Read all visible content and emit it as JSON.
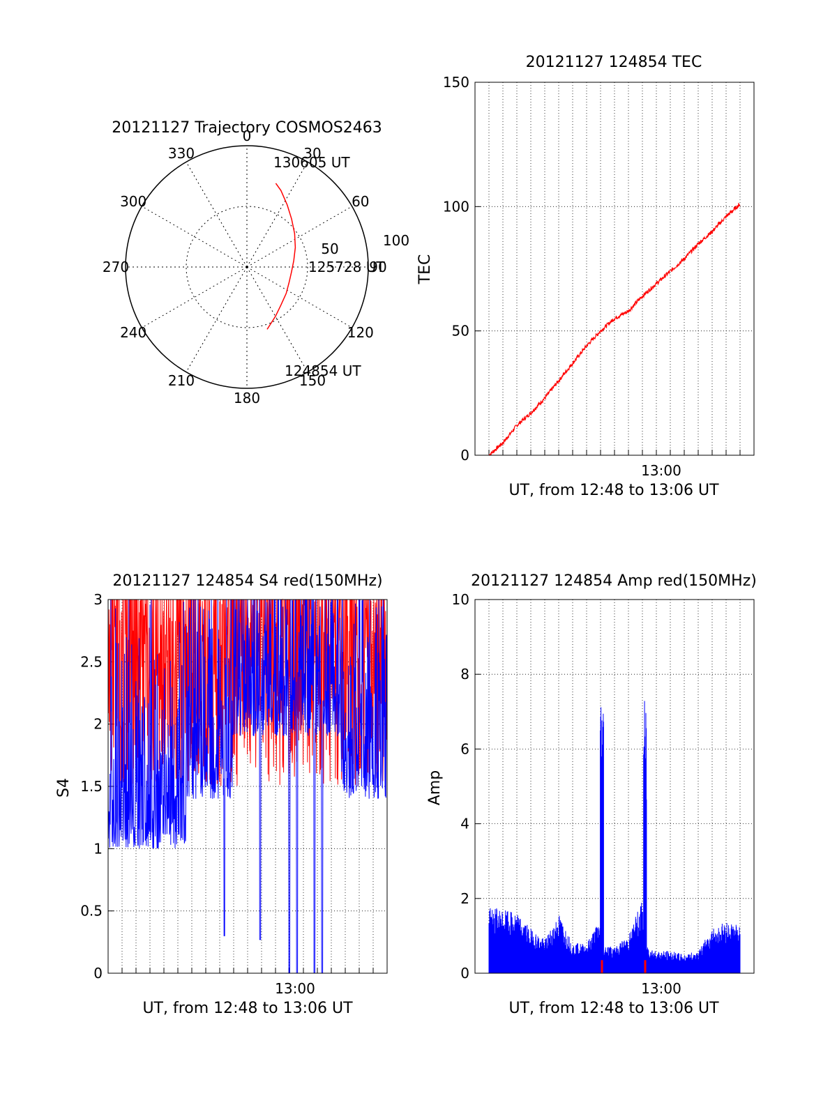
{
  "colors": {
    "red": "#ff0000",
    "blue": "#0000ff",
    "axis": "#000000",
    "grid": "#000000"
  },
  "chart_data": [
    {
      "type": "polar",
      "title": "20121127 Trajectory COSMOS2463",
      "azimuth_labels": [
        "0",
        "30",
        "60",
        "90",
        "120",
        "150",
        "180",
        "210",
        "240",
        "270",
        "300",
        "330"
      ],
      "radius_labels": [
        "50",
        "100"
      ],
      "series": [
        {
          "color": "#ff0000",
          "points": [
            {
              "az": 162,
              "zen": 54
            },
            {
              "az": 150,
              "zen": 47
            },
            {
              "az": 138,
              "zen": 42
            },
            {
              "az": 124,
              "zen": 39
            },
            {
              "az": 110,
              "zen": 37
            },
            {
              "az": 96,
              "zen": 37
            },
            {
              "az": 82,
              "zen": 39
            },
            {
              "az": 68,
              "zen": 43
            },
            {
              "az": 55,
              "zen": 48
            },
            {
              "az": 43,
              "zen": 54
            },
            {
              "az": 33,
              "zen": 61
            },
            {
              "az": 24,
              "zen": 69
            },
            {
              "az": 19,
              "zen": 73
            }
          ]
        }
      ],
      "annotations": [
        "130605 UT",
        "125728 UT",
        "124854 UT"
      ]
    },
    {
      "type": "line",
      "title": "20121127 124854 TEC",
      "ylabel": "TEC",
      "xlabel": "UT, from 12:48 to 13:06 UT",
      "xtick_labels": [
        "13:00"
      ],
      "ytick_labels": [
        "0",
        "50",
        "100",
        "150"
      ],
      "ylim": [
        0,
        150
      ],
      "grid": true,
      "series": [
        {
          "color": "#ff0000",
          "x_minutes": [
            0,
            1,
            2,
            3,
            4,
            5,
            6,
            7,
            8,
            9,
            10,
            11,
            12,
            13,
            14,
            15,
            16,
            17,
            18
          ],
          "values": [
            0,
            5,
            12,
            17,
            23,
            30,
            37,
            44,
            50,
            55,
            58,
            64,
            69,
            74,
            79,
            85,
            90,
            96,
            101
          ]
        }
      ]
    },
    {
      "type": "line",
      "title": "20121127 124854 S4 red(150MHz)",
      "ylabel": "S4",
      "xlabel": "UT, from 12:48 to 13:06 UT",
      "xtick_labels": [
        "13:00"
      ],
      "ytick_labels": [
        "0",
        "0.5",
        "1",
        "1.5",
        "2",
        "2.5",
        "3"
      ],
      "ylim": [
        0,
        3
      ],
      "grid": true,
      "series": [
        {
          "color": "#ff0000",
          "typical_range": [
            1.5,
            3.0
          ]
        },
        {
          "color": "#0000ff",
          "typical_range": [
            1.0,
            3.0
          ],
          "dips_to": [
            0.3,
            0.27,
            0.0,
            0.0,
            0.0,
            0.0
          ]
        }
      ]
    },
    {
      "type": "bar",
      "title": "20121127 124854 Amp red(150MHz)",
      "ylabel": "Amp",
      "xlabel": "UT, from 12:48 to 13:06 UT",
      "xtick_labels": [
        "13:00"
      ],
      "ytick_labels": [
        "0",
        "2",
        "4",
        "6",
        "8",
        "10"
      ],
      "ylim": [
        0,
        10
      ],
      "grid": true,
      "series": [
        {
          "color": "#0000ff",
          "x_minutes": [
            0,
            1,
            2,
            3,
            4,
            5,
            6,
            7,
            8,
            8.1,
            9,
            10,
            11,
            11.2,
            12,
            13,
            14,
            15,
            16,
            17,
            18
          ],
          "values": [
            1.8,
            1.7,
            1.6,
            1.2,
            0.9,
            1.6,
            0.8,
            0.8,
            1.5,
            7.6,
            0.7,
            1.0,
            2.0,
            7.3,
            0.6,
            0.6,
            0.5,
            0.6,
            1.2,
            1.4,
            1.3
          ]
        },
        {
          "color": "#ff0000",
          "x_minutes": [
            8.1,
            11.2
          ],
          "values": [
            0.35,
            0.35
          ]
        }
      ]
    }
  ]
}
